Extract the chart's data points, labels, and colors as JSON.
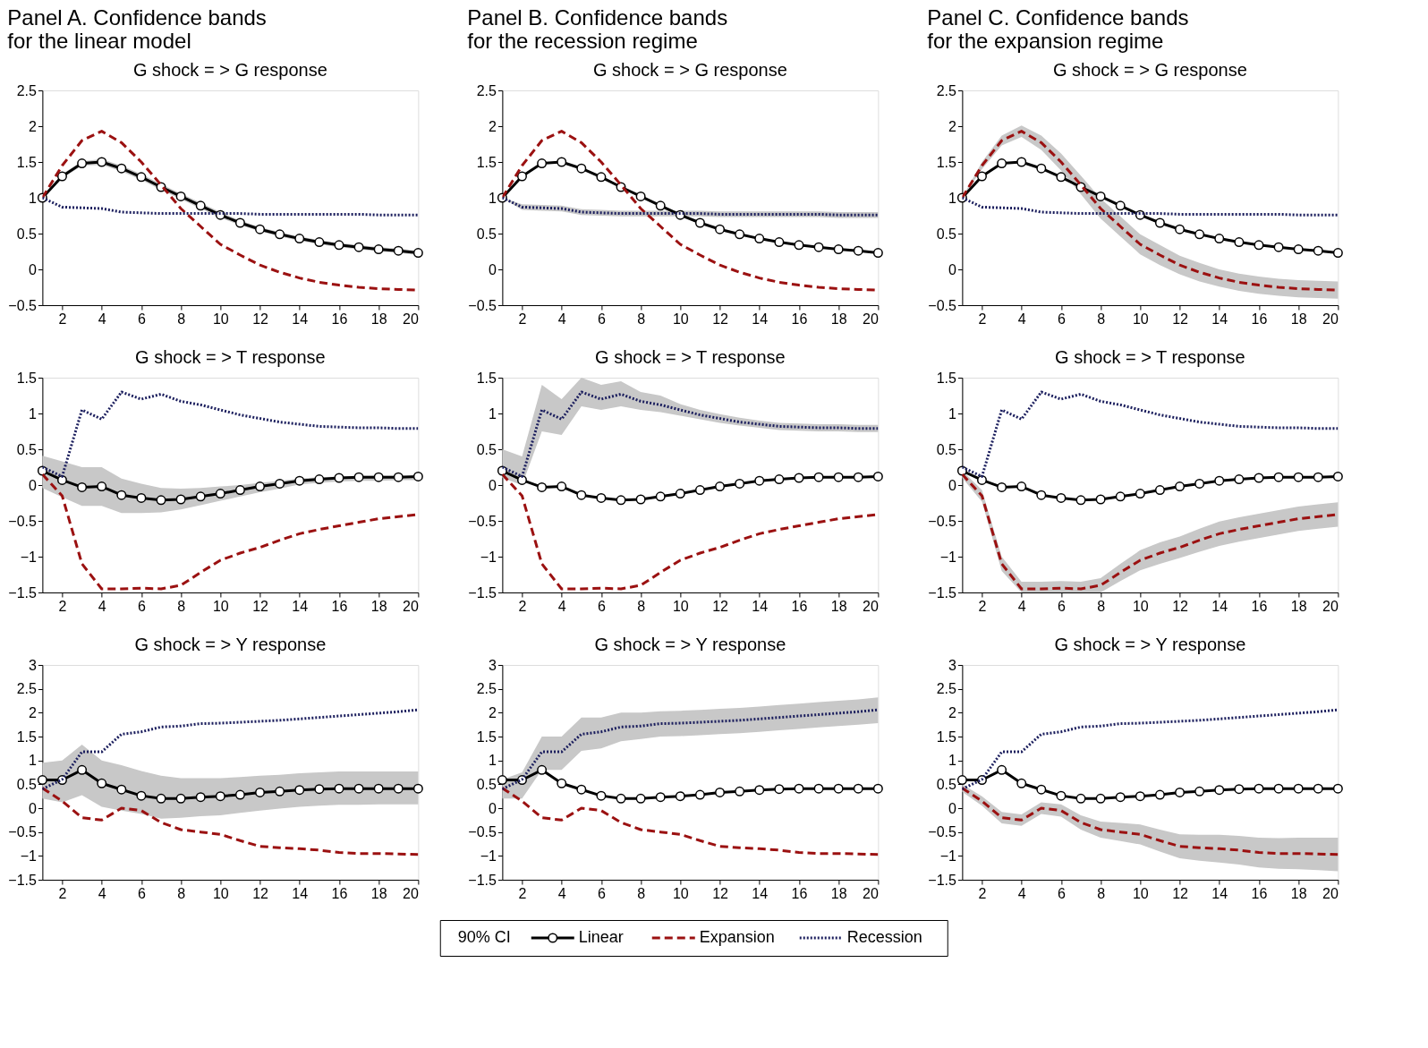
{
  "chart_data": [
    {
      "type": "line",
      "title": "Panel A. Confidence bands\nfor the linear model",
      "subtitle": "G shock = > G response",
      "x": [
        1,
        2,
        3,
        4,
        5,
        6,
        7,
        8,
        9,
        10,
        11,
        12,
        13,
        14,
        15,
        16,
        17,
        18,
        19,
        20
      ],
      "xlim": [
        1,
        20
      ],
      "xticks": [
        2,
        4,
        6,
        8,
        10,
        12,
        14,
        16,
        18,
        20
      ],
      "ylim": [
        -0.5,
        2.5
      ],
      "yticks": [
        -0.5,
        0,
        0.5,
        1,
        1.5,
        2,
        2.5
      ],
      "grid": false,
      "series": [
        {
          "color": "#000000",
          "marker": "circle",
          "line_style": "solid",
          "values": [
            1.0,
            1.3,
            1.48,
            1.5,
            1.41,
            1.29,
            1.15,
            1.02,
            0.89,
            0.76,
            0.65,
            0.56,
            0.49,
            0.43,
            0.38,
            0.34,
            0.31,
            0.28,
            0.26,
            0.23
          ],
          "lower": [
            1.0,
            1.27,
            1.45,
            1.46,
            1.37,
            1.25,
            1.11,
            0.98,
            0.85,
            0.72,
            0.62,
            0.53,
            0.46,
            0.4,
            0.35,
            0.31,
            0.28,
            0.25,
            0.23,
            0.2
          ],
          "upper": [
            1.0,
            1.33,
            1.51,
            1.54,
            1.45,
            1.33,
            1.19,
            1.06,
            0.93,
            0.8,
            0.68,
            0.59,
            0.52,
            0.46,
            0.41,
            0.37,
            0.34,
            0.31,
            0.29,
            0.26
          ]
        },
        {
          "color": "#9b1111",
          "line_style": "dashed",
          "values": [
            1.0,
            1.45,
            1.8,
            1.93,
            1.77,
            1.5,
            1.18,
            0.85,
            0.6,
            0.35,
            0.2,
            0.06,
            -0.04,
            -0.12,
            -0.18,
            -0.22,
            -0.25,
            -0.27,
            -0.28,
            -0.29
          ]
        },
        {
          "color": "#1c1f5e",
          "line_style": "dotted",
          "values": [
            1.0,
            0.87,
            0.86,
            0.85,
            0.8,
            0.79,
            0.78,
            0.78,
            0.78,
            0.78,
            0.78,
            0.77,
            0.77,
            0.77,
            0.77,
            0.77,
            0.77,
            0.76,
            0.76,
            0.76
          ]
        }
      ]
    },
    {
      "type": "line",
      "title": "Panel B. Confidence bands\nfor the recession regime",
      "subtitle": "G shock = > G response",
      "x": [
        1,
        2,
        3,
        4,
        5,
        6,
        7,
        8,
        9,
        10,
        11,
        12,
        13,
        14,
        15,
        16,
        17,
        18,
        19,
        20
      ],
      "xlim": [
        1,
        20
      ],
      "xticks": [
        2,
        4,
        6,
        8,
        10,
        12,
        14,
        16,
        18,
        20
      ],
      "ylim": [
        -0.5,
        2.5
      ],
      "yticks": [
        -0.5,
        0,
        0.5,
        1,
        1.5,
        2,
        2.5
      ],
      "grid": false,
      "series": [
        {
          "color": "#000000",
          "marker": "circle",
          "line_style": "solid",
          "values": [
            1.0,
            1.3,
            1.48,
            1.5,
            1.41,
            1.29,
            1.15,
            1.02,
            0.89,
            0.76,
            0.65,
            0.56,
            0.49,
            0.43,
            0.38,
            0.34,
            0.31,
            0.28,
            0.26,
            0.23
          ]
        },
        {
          "color": "#9b1111",
          "line_style": "dashed",
          "values": [
            1.0,
            1.45,
            1.8,
            1.93,
            1.77,
            1.5,
            1.18,
            0.85,
            0.6,
            0.35,
            0.2,
            0.06,
            -0.04,
            -0.12,
            -0.18,
            -0.22,
            -0.25,
            -0.27,
            -0.28,
            -0.29
          ]
        },
        {
          "color": "#1c1f5e",
          "line_style": "dotted",
          "values": [
            1.0,
            0.87,
            0.86,
            0.85,
            0.8,
            0.79,
            0.78,
            0.78,
            0.78,
            0.78,
            0.78,
            0.77,
            0.77,
            0.77,
            0.77,
            0.77,
            0.77,
            0.76,
            0.76,
            0.76
          ],
          "lower": [
            1.0,
            0.83,
            0.82,
            0.81,
            0.76,
            0.75,
            0.74,
            0.74,
            0.74,
            0.74,
            0.74,
            0.73,
            0.73,
            0.73,
            0.73,
            0.73,
            0.73,
            0.72,
            0.72,
            0.72
          ],
          "upper": [
            1.0,
            0.91,
            0.9,
            0.89,
            0.84,
            0.83,
            0.82,
            0.82,
            0.82,
            0.82,
            0.82,
            0.81,
            0.81,
            0.81,
            0.81,
            0.81,
            0.81,
            0.8,
            0.8,
            0.8
          ]
        }
      ]
    },
    {
      "type": "line",
      "title": "Panel C. Confidence bands\nfor the expansion regime",
      "subtitle": "G shock = > G response",
      "x": [
        1,
        2,
        3,
        4,
        5,
        6,
        7,
        8,
        9,
        10,
        11,
        12,
        13,
        14,
        15,
        16,
        17,
        18,
        19,
        20
      ],
      "xlim": [
        1,
        20
      ],
      "xticks": [
        2,
        4,
        6,
        8,
        10,
        12,
        14,
        16,
        18,
        20
      ],
      "ylim": [
        -0.5,
        2.5
      ],
      "yticks": [
        -0.5,
        0,
        0.5,
        1,
        1.5,
        2,
        2.5
      ],
      "grid": false,
      "series": [
        {
          "color": "#000000",
          "marker": "circle",
          "line_style": "solid",
          "values": [
            1.0,
            1.3,
            1.48,
            1.5,
            1.41,
            1.29,
            1.15,
            1.02,
            0.89,
            0.76,
            0.65,
            0.56,
            0.49,
            0.43,
            0.38,
            0.34,
            0.31,
            0.28,
            0.26,
            0.23
          ]
        },
        {
          "color": "#9b1111",
          "line_style": "dashed",
          "values": [
            1.0,
            1.45,
            1.8,
            1.93,
            1.77,
            1.5,
            1.18,
            0.85,
            0.6,
            0.35,
            0.2,
            0.06,
            -0.04,
            -0.12,
            -0.18,
            -0.22,
            -0.25,
            -0.27,
            -0.28,
            -0.29
          ],
          "lower": [
            1.0,
            1.4,
            1.73,
            1.85,
            1.67,
            1.38,
            1.05,
            0.71,
            0.46,
            0.21,
            0.06,
            -0.07,
            -0.17,
            -0.24,
            -0.3,
            -0.34,
            -0.37,
            -0.39,
            -0.4,
            -0.41
          ],
          "upper": [
            1.0,
            1.5,
            1.87,
            2.01,
            1.87,
            1.62,
            1.31,
            0.99,
            0.74,
            0.49,
            0.34,
            0.19,
            0.09,
            0.0,
            -0.06,
            -0.1,
            -0.13,
            -0.15,
            -0.16,
            -0.17
          ]
        },
        {
          "color": "#1c1f5e",
          "line_style": "dotted",
          "values": [
            1.0,
            0.87,
            0.86,
            0.85,
            0.8,
            0.79,
            0.78,
            0.78,
            0.78,
            0.78,
            0.78,
            0.77,
            0.77,
            0.77,
            0.77,
            0.77,
            0.77,
            0.76,
            0.76,
            0.76
          ]
        }
      ]
    },
    {
      "type": "line",
      "title": "G shock = > T response",
      "x": [
        1,
        2,
        3,
        4,
        5,
        6,
        7,
        8,
        9,
        10,
        11,
        12,
        13,
        14,
        15,
        16,
        17,
        18,
        19,
        20
      ],
      "xlim": [
        1,
        20
      ],
      "xticks": [
        2,
        4,
        6,
        8,
        10,
        12,
        14,
        16,
        18,
        20
      ],
      "ylim": [
        -1.5,
        1.5
      ],
      "yticks": [
        -1.5,
        -1,
        -0.5,
        0,
        0.5,
        1,
        1.5
      ],
      "grid": false,
      "series": [
        {
          "color": "#000000",
          "marker": "circle",
          "line_style": "solid",
          "values": [
            0.2,
            0.07,
            -0.03,
            -0.02,
            -0.14,
            -0.18,
            -0.21,
            -0.2,
            -0.16,
            -0.12,
            -0.07,
            -0.02,
            0.02,
            0.06,
            0.08,
            0.1,
            0.11,
            0.11,
            0.11,
            0.12
          ],
          "lower": [
            -0.04,
            -0.17,
            -0.29,
            -0.29,
            -0.39,
            -0.39,
            -0.38,
            -0.34,
            -0.28,
            -0.22,
            -0.16,
            -0.1,
            -0.05,
            0.01,
            0.03,
            0.05,
            0.06,
            0.06,
            0.07,
            0.07
          ],
          "upper": [
            0.41,
            0.33,
            0.25,
            0.25,
            0.09,
            0.02,
            -0.04,
            -0.05,
            -0.04,
            -0.02,
            0.0,
            0.03,
            0.06,
            0.09,
            0.11,
            0.12,
            0.13,
            0.13,
            0.13,
            0.13
          ]
        },
        {
          "color": "#9b1111",
          "line_style": "dashed",
          "values": [
            0.15,
            -0.15,
            -1.1,
            -1.45,
            -1.45,
            -1.44,
            -1.45,
            -1.4,
            -1.22,
            -1.05,
            -0.95,
            -0.87,
            -0.77,
            -0.68,
            -0.62,
            -0.57,
            -0.52,
            -0.47,
            -0.44,
            -0.41
          ]
        },
        {
          "color": "#1c1f5e",
          "line_style": "dotted",
          "values": [
            0.25,
            0.12,
            1.05,
            0.92,
            1.3,
            1.2,
            1.27,
            1.17,
            1.12,
            1.05,
            0.98,
            0.93,
            0.88,
            0.85,
            0.82,
            0.81,
            0.8,
            0.8,
            0.79,
            0.79
          ]
        }
      ]
    },
    {
      "type": "line",
      "title": "G shock = > T response",
      "x": [
        1,
        2,
        3,
        4,
        5,
        6,
        7,
        8,
        9,
        10,
        11,
        12,
        13,
        14,
        15,
        16,
        17,
        18,
        19,
        20
      ],
      "xlim": [
        1,
        20
      ],
      "xticks": [
        2,
        4,
        6,
        8,
        10,
        12,
        14,
        16,
        18,
        20
      ],
      "ylim": [
        -1.5,
        1.5
      ],
      "yticks": [
        -1.5,
        -1,
        -0.5,
        0,
        0.5,
        1,
        1.5
      ],
      "grid": false,
      "series": [
        {
          "color": "#000000",
          "marker": "circle",
          "line_style": "solid",
          "values": [
            0.2,
            0.07,
            -0.03,
            -0.02,
            -0.14,
            -0.18,
            -0.21,
            -0.2,
            -0.16,
            -0.12,
            -0.07,
            -0.02,
            0.02,
            0.06,
            0.08,
            0.1,
            0.11,
            0.11,
            0.11,
            0.12
          ]
        },
        {
          "color": "#9b1111",
          "line_style": "dashed",
          "values": [
            0.15,
            -0.15,
            -1.1,
            -1.45,
            -1.45,
            -1.44,
            -1.45,
            -1.4,
            -1.22,
            -1.05,
            -0.95,
            -0.87,
            -0.77,
            -0.68,
            -0.62,
            -0.57,
            -0.52,
            -0.47,
            -0.44,
            -0.41
          ]
        },
        {
          "color": "#1c1f5e",
          "line_style": "dotted",
          "values": [
            0.25,
            0.12,
            1.05,
            0.92,
            1.3,
            1.2,
            1.27,
            1.17,
            1.12,
            1.05,
            0.98,
            0.93,
            0.88,
            0.85,
            0.82,
            0.81,
            0.8,
            0.8,
            0.79,
            0.79
          ],
          "lower": [
            0.1,
            0.0,
            0.75,
            0.7,
            1.1,
            1.05,
            1.1,
            1.05,
            1.02,
            0.97,
            0.92,
            0.87,
            0.83,
            0.8,
            0.77,
            0.76,
            0.75,
            0.75,
            0.74,
            0.74
          ],
          "upper": [
            0.5,
            0.4,
            1.4,
            1.2,
            1.5,
            1.4,
            1.45,
            1.3,
            1.25,
            1.13,
            1.05,
            0.99,
            0.94,
            0.9,
            0.87,
            0.86,
            0.85,
            0.85,
            0.84,
            0.84
          ]
        }
      ]
    },
    {
      "type": "line",
      "title": "G shock = > T response",
      "x": [
        1,
        2,
        3,
        4,
        5,
        6,
        7,
        8,
        9,
        10,
        11,
        12,
        13,
        14,
        15,
        16,
        17,
        18,
        19,
        20
      ],
      "xlim": [
        1,
        20
      ],
      "xticks": [
        2,
        4,
        6,
        8,
        10,
        12,
        14,
        16,
        18,
        20
      ],
      "ylim": [
        -1.5,
        1.5
      ],
      "yticks": [
        -1.5,
        -1,
        -0.5,
        0,
        0.5,
        1,
        1.5
      ],
      "grid": false,
      "series": [
        {
          "color": "#000000",
          "marker": "circle",
          "line_style": "solid",
          "values": [
            0.2,
            0.07,
            -0.03,
            -0.02,
            -0.14,
            -0.18,
            -0.21,
            -0.2,
            -0.16,
            -0.12,
            -0.07,
            -0.02,
            0.02,
            0.06,
            0.08,
            0.1,
            0.11,
            0.11,
            0.11,
            0.12
          ]
        },
        {
          "color": "#9b1111",
          "line_style": "dashed",
          "values": [
            0.15,
            -0.15,
            -1.1,
            -1.45,
            -1.45,
            -1.44,
            -1.45,
            -1.4,
            -1.22,
            -1.05,
            -0.95,
            -0.87,
            -0.77,
            -0.68,
            -0.62,
            -0.57,
            -0.52,
            -0.47,
            -0.44,
            -0.41
          ],
          "lower": [
            0.1,
            -0.23,
            -1.2,
            -1.5,
            -1.5,
            -1.5,
            -1.5,
            -1.5,
            -1.34,
            -1.19,
            -1.1,
            -1.02,
            -0.93,
            -0.85,
            -0.79,
            -0.74,
            -0.69,
            -0.64,
            -0.61,
            -0.58
          ],
          "upper": [
            0.2,
            -0.07,
            -1.0,
            -1.35,
            -1.35,
            -1.34,
            -1.35,
            -1.3,
            -1.1,
            -0.91,
            -0.8,
            -0.72,
            -0.61,
            -0.51,
            -0.45,
            -0.4,
            -0.35,
            -0.3,
            -0.27,
            -0.24
          ]
        },
        {
          "color": "#1c1f5e",
          "line_style": "dotted",
          "values": [
            0.25,
            0.12,
            1.05,
            0.92,
            1.3,
            1.2,
            1.27,
            1.17,
            1.12,
            1.05,
            0.98,
            0.93,
            0.88,
            0.85,
            0.82,
            0.81,
            0.8,
            0.8,
            0.79,
            0.79
          ]
        }
      ]
    },
    {
      "type": "line",
      "title": "G shock = > Y response",
      "x": [
        1,
        2,
        3,
        4,
        5,
        6,
        7,
        8,
        9,
        10,
        11,
        12,
        13,
        14,
        15,
        16,
        17,
        18,
        19,
        20
      ],
      "xlim": [
        1,
        20
      ],
      "xticks": [
        2,
        4,
        6,
        8,
        10,
        12,
        14,
        16,
        18,
        20
      ],
      "ylim": [
        -1.5,
        3
      ],
      "yticks": [
        -1.5,
        -1,
        -0.5,
        0,
        0.5,
        1,
        1.5,
        2,
        2.5,
        3
      ],
      "grid": false,
      "series": [
        {
          "color": "#000000",
          "marker": "circle",
          "line_style": "solid",
          "values": [
            0.59,
            0.59,
            0.8,
            0.52,
            0.39,
            0.26,
            0.2,
            0.2,
            0.23,
            0.25,
            0.28,
            0.33,
            0.35,
            0.38,
            0.4,
            0.41,
            0.41,
            0.41,
            0.41,
            0.41
          ],
          "lower": [
            0.2,
            0.12,
            0.27,
            0.03,
            -0.05,
            -0.12,
            -0.22,
            -0.2,
            -0.17,
            -0.15,
            -0.1,
            -0.05,
            -0.01,
            0.03,
            0.05,
            0.07,
            0.07,
            0.08,
            0.08,
            0.08
          ],
          "upper": [
            0.95,
            1.0,
            1.33,
            1.0,
            0.9,
            0.78,
            0.68,
            0.63,
            0.63,
            0.63,
            0.65,
            0.68,
            0.7,
            0.73,
            0.75,
            0.77,
            0.77,
            0.77,
            0.77,
            0.77
          ]
        },
        {
          "color": "#9b1111",
          "line_style": "dashed",
          "values": [
            0.42,
            0.15,
            -0.2,
            -0.25,
            0.0,
            -0.05,
            -0.3,
            -0.45,
            -0.5,
            -0.55,
            -0.68,
            -0.8,
            -0.83,
            -0.85,
            -0.88,
            -0.93,
            -0.95,
            -0.95,
            -0.96,
            -0.97
          ]
        },
        {
          "color": "#1c1f5e",
          "line_style": "dotted",
          "values": [
            0.4,
            0.6,
            1.18,
            1.18,
            1.55,
            1.6,
            1.7,
            1.72,
            1.77,
            1.78,
            1.8,
            1.82,
            1.84,
            1.87,
            1.9,
            1.93,
            1.96,
            1.99,
            2.02,
            2.06
          ]
        }
      ]
    },
    {
      "type": "line",
      "title": "G shock = > Y response",
      "x": [
        1,
        2,
        3,
        4,
        5,
        6,
        7,
        8,
        9,
        10,
        11,
        12,
        13,
        14,
        15,
        16,
        17,
        18,
        19,
        20
      ],
      "xlim": [
        1,
        20
      ],
      "xticks": [
        2,
        4,
        6,
        8,
        10,
        12,
        14,
        16,
        18,
        20
      ],
      "ylim": [
        -1.5,
        3
      ],
      "yticks": [
        -1.5,
        -1,
        -0.5,
        0,
        0.5,
        1,
        1.5,
        2,
        2.5,
        3
      ],
      "grid": false,
      "legend": "bottom",
      "annotations": [
        "90% CI"
      ],
      "series": [
        {
          "name": "Linear",
          "color": "#000000",
          "marker": "circle",
          "line_style": "solid",
          "values": [
            0.59,
            0.59,
            0.8,
            0.52,
            0.39,
            0.26,
            0.2,
            0.2,
            0.23,
            0.25,
            0.28,
            0.33,
            0.35,
            0.38,
            0.4,
            0.41,
            0.41,
            0.41,
            0.41,
            0.41
          ]
        },
        {
          "name": "Expansion",
          "color": "#9b1111",
          "line_style": "dashed",
          "values": [
            0.42,
            0.15,
            -0.2,
            -0.25,
            0.0,
            -0.05,
            -0.3,
            -0.45,
            -0.5,
            -0.55,
            -0.68,
            -0.8,
            -0.83,
            -0.85,
            -0.88,
            -0.93,
            -0.95,
            -0.95,
            -0.96,
            -0.97
          ]
        },
        {
          "name": "Recession",
          "color": "#1c1f5e",
          "line_style": "dotted",
          "values": [
            0.4,
            0.6,
            1.18,
            1.18,
            1.55,
            1.6,
            1.7,
            1.72,
            1.77,
            1.78,
            1.8,
            1.82,
            1.84,
            1.87,
            1.9,
            1.93,
            1.96,
            1.99,
            2.02,
            2.06
          ],
          "lower": [
            0.2,
            0.2,
            0.8,
            0.8,
            1.2,
            1.25,
            1.4,
            1.45,
            1.5,
            1.51,
            1.53,
            1.55,
            1.57,
            1.6,
            1.63,
            1.66,
            1.69,
            1.72,
            1.75,
            1.78
          ],
          "upper": [
            0.6,
            0.75,
            1.5,
            1.5,
            1.9,
            1.9,
            2.0,
            2.0,
            2.03,
            2.04,
            2.06,
            2.08,
            2.1,
            2.13,
            2.16,
            2.19,
            2.22,
            2.25,
            2.28,
            2.32
          ]
        }
      ]
    },
    {
      "type": "line",
      "title": "G shock = > Y response",
      "x": [
        1,
        2,
        3,
        4,
        5,
        6,
        7,
        8,
        9,
        10,
        11,
        12,
        13,
        14,
        15,
        16,
        17,
        18,
        19,
        20
      ],
      "xlim": [
        1,
        20
      ],
      "xticks": [
        2,
        4,
        6,
        8,
        10,
        12,
        14,
        16,
        18,
        20
      ],
      "ylim": [
        -1.5,
        3
      ],
      "yticks": [
        -1.5,
        -1,
        -0.5,
        0,
        0.5,
        1,
        1.5,
        2,
        2.5,
        3
      ],
      "grid": false,
      "series": [
        {
          "color": "#000000",
          "marker": "circle",
          "line_style": "solid",
          "values": [
            0.59,
            0.59,
            0.8,
            0.52,
            0.39,
            0.26,
            0.2,
            0.2,
            0.23,
            0.25,
            0.28,
            0.33,
            0.35,
            0.38,
            0.4,
            0.41,
            0.41,
            0.41,
            0.41,
            0.41
          ]
        },
        {
          "color": "#9b1111",
          "line_style": "dashed",
          "values": [
            0.42,
            0.15,
            -0.2,
            -0.25,
            0.0,
            -0.05,
            -0.3,
            -0.45,
            -0.5,
            -0.55,
            -0.68,
            -0.8,
            -0.83,
            -0.85,
            -0.88,
            -0.93,
            -0.95,
            -0.95,
            -0.96,
            -0.97
          ],
          "lower": [
            0.34,
            0.05,
            -0.32,
            -0.37,
            -0.12,
            -0.18,
            -0.45,
            -0.62,
            -0.69,
            -0.76,
            -0.91,
            -1.05,
            -1.1,
            -1.14,
            -1.18,
            -1.24,
            -1.27,
            -1.28,
            -1.3,
            -1.32
          ],
          "upper": [
            0.5,
            0.25,
            -0.08,
            -0.13,
            0.12,
            0.08,
            -0.15,
            -0.28,
            -0.31,
            -0.34,
            -0.45,
            -0.55,
            -0.56,
            -0.56,
            -0.58,
            -0.62,
            -0.63,
            -0.62,
            -0.62,
            -0.62
          ]
        },
        {
          "color": "#1c1f5e",
          "line_style": "dotted",
          "values": [
            0.4,
            0.6,
            1.18,
            1.18,
            1.55,
            1.6,
            1.7,
            1.72,
            1.77,
            1.78,
            1.8,
            1.82,
            1.84,
            1.87,
            1.9,
            1.93,
            1.96,
            1.99,
            2.02,
            2.06
          ]
        }
      ]
    }
  ]
}
